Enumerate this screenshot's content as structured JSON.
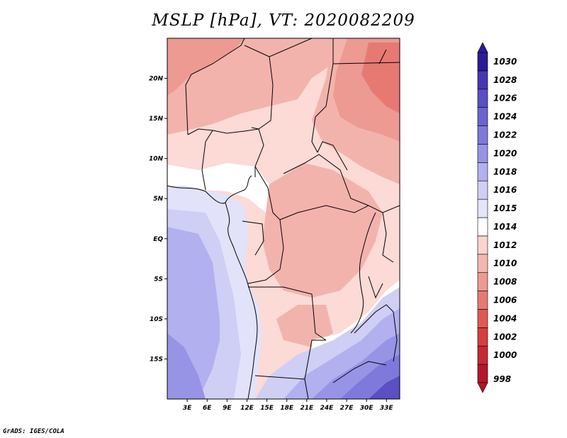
{
  "title": "MSLP [hPa], VT: 2020082209",
  "footer": "GrADS: IGES/COLA",
  "map": {
    "lon_range": [
      0,
      35
    ],
    "lat_range": [
      -20,
      25
    ],
    "x_ticks": [
      {
        "lon": 3,
        "label": "3E"
      },
      {
        "lon": 6,
        "label": "6E"
      },
      {
        "lon": 9,
        "label": "9E"
      },
      {
        "lon": 12,
        "label": "12E"
      },
      {
        "lon": 15,
        "label": "15E"
      },
      {
        "lon": 18,
        "label": "18E"
      },
      {
        "lon": 21,
        "label": "21E"
      },
      {
        "lon": 24,
        "label": "24E"
      },
      {
        "lon": 27,
        "label": "27E"
      },
      {
        "lon": 30,
        "label": "30E"
      },
      {
        "lon": 33,
        "label": "33E"
      }
    ],
    "y_ticks": [
      {
        "lat": 20,
        "label": "20N"
      },
      {
        "lat": 15,
        "label": "15N"
      },
      {
        "lat": 10,
        "label": "10N"
      },
      {
        "lat": 5,
        "label": "5N"
      },
      {
        "lat": 0,
        "label": "EQ"
      },
      {
        "lat": -5,
        "label": "5S"
      },
      {
        "lat": -10,
        "label": "10S"
      },
      {
        "lat": -15,
        "label": "15S"
      }
    ]
  },
  "colorbar": {
    "levels": [
      "998",
      "1000",
      "1002",
      "1004",
      "1006",
      "1008",
      "1010",
      "1012",
      "1014",
      "1015",
      "1016",
      "1018",
      "1020",
      "1022",
      "1024",
      "1026",
      "1028",
      "1030"
    ],
    "colors": [
      "#b2182b",
      "#c52a32",
      "#d63e3c",
      "#e05a55",
      "#e67a73",
      "#ec9a92",
      "#f4b6b0",
      "#fbd3cf",
      "#ffffff",
      "#e4e4fb",
      "#cfcff5",
      "#b2b0ee",
      "#9794e6",
      "#7f79db",
      "#6c63cf",
      "#5a4fc3",
      "#4637b0",
      "#2a1b96"
    ]
  },
  "colors": {
    "land_high": "#e06663",
    "land_mid": "#f3b3ad",
    "land_low": "#fcdad6",
    "ocean_high": "#e2e2fb",
    "ocean_mid": "#aaa8ec",
    "ocean_low": "#4c40b4"
  }
}
